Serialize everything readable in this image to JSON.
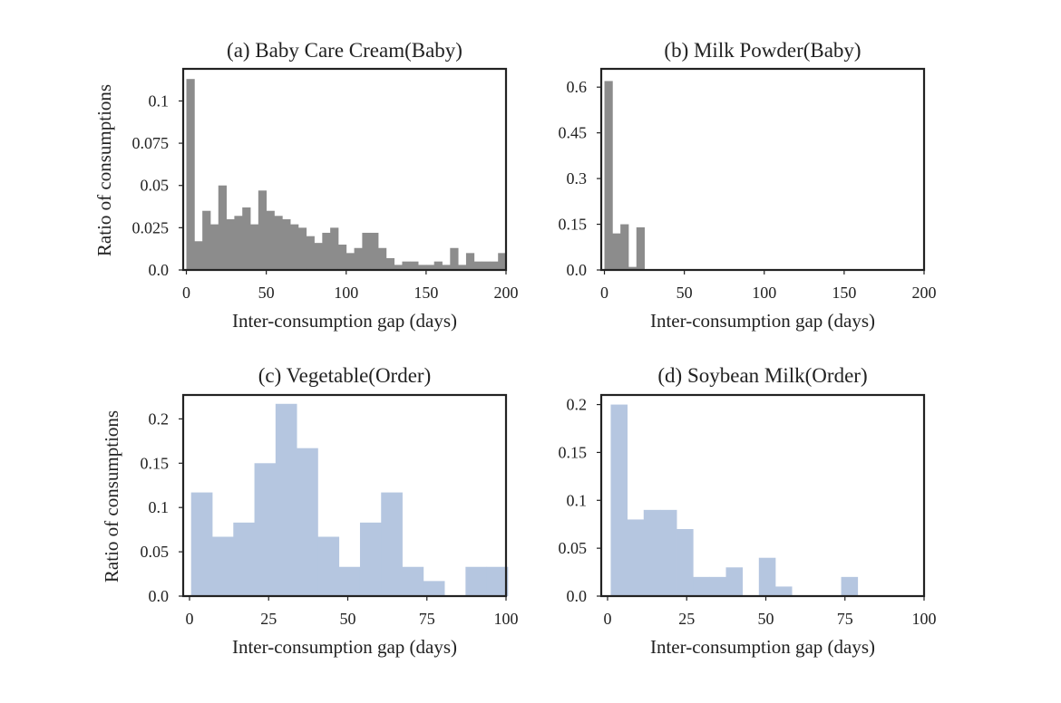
{
  "chart_data": [
    {
      "type": "bar",
      "title": "(a) Baby Care Cream(Baby)",
      "xlabel": "Inter-consumption gap (days)",
      "ylabel": "Ratio of consumptions",
      "xlim": [
        -2,
        200
      ],
      "ylim": [
        0,
        0.119
      ],
      "bin_width": 5,
      "bin_start": 0,
      "values": [
        0.113,
        0.017,
        0.035,
        0.027,
        0.05,
        0.03,
        0.032,
        0.037,
        0.027,
        0.047,
        0.035,
        0.032,
        0.03,
        0.027,
        0.025,
        0.02,
        0.016,
        0.022,
        0.025,
        0.015,
        0.01,
        0.013,
        0.022,
        0.022,
        0.013,
        0.007,
        0.003,
        0.005,
        0.005,
        0.003,
        0.003,
        0.005,
        0.003,
        0.013,
        0.003,
        0.01,
        0.005,
        0.005,
        0.005,
        0.01
      ],
      "xticks": [
        0,
        50,
        100,
        150,
        200
      ],
      "xtick_labels": [
        "0",
        "50",
        "100",
        "150",
        "200"
      ],
      "yticks": [
        0,
        0.025,
        0.05,
        0.075,
        0.1
      ],
      "ytick_labels": [
        "0.0",
        "0.025",
        "0.05",
        "0.075",
        "0.1"
      ],
      "color": "#8c8c8c"
    },
    {
      "type": "bar",
      "title": "(b) Milk Powder(Baby)",
      "xlabel": "Inter-consumption gap (days)",
      "ylabel": "",
      "xlim": [
        -2,
        200
      ],
      "ylim": [
        0,
        0.66
      ],
      "bin_width": 5,
      "bin_start": 0,
      "values": [
        0.62,
        0.12,
        0.15,
        0.01,
        0.14
      ],
      "xticks": [
        0,
        50,
        100,
        150,
        200
      ],
      "xtick_labels": [
        "0",
        "50",
        "100",
        "150",
        "200"
      ],
      "yticks": [
        0,
        0.15,
        0.3,
        0.45,
        0.6
      ],
      "ytick_labels": [
        "0.0",
        "0.15",
        "0.3",
        "0.45",
        "0.6"
      ],
      "color": "#8c8c8c"
    },
    {
      "type": "bar",
      "title": "(c) Vegetable(Order)",
      "xlabel": "Inter-consumption gap (days)",
      "ylabel": "Ratio of consumptions",
      "xlim": [
        -2,
        100
      ],
      "ylim": [
        0,
        0.227
      ],
      "bin_width": 6.67,
      "bin_start": 0.5,
      "values": [
        0.117,
        0.067,
        0.083,
        0.15,
        0.217,
        0.167,
        0.067,
        0.033,
        0.083,
        0.117,
        0.033,
        0.017,
        0,
        0.033,
        0.033
      ],
      "xticks": [
        0,
        25,
        50,
        75,
        100
      ],
      "xtick_labels": [
        "0",
        "25",
        "50",
        "75",
        "100"
      ],
      "yticks": [
        0,
        0.05,
        0.1,
        0.15,
        0.2
      ],
      "ytick_labels": [
        "0.0",
        "0.05",
        "0.1",
        "0.15",
        "0.2"
      ],
      "color": "#b5c6e0"
    },
    {
      "type": "bar",
      "title": "(d) Soybean Milk(Order)",
      "xlabel": "Inter-consumption gap (days)",
      "ylabel": "",
      "xlim": [
        -2,
        100
      ],
      "ylim": [
        0,
        0.21
      ],
      "bin_width": 5.2,
      "bin_start": 1,
      "values": [
        0.2,
        0.08,
        0.09,
        0.09,
        0.07,
        0.02,
        0.02,
        0.03,
        0,
        0.04,
        0.01,
        0,
        0,
        0,
        0.02
      ],
      "xticks": [
        0,
        25,
        50,
        75,
        100
      ],
      "xtick_labels": [
        "0",
        "25",
        "50",
        "75",
        "100"
      ],
      "yticks": [
        0,
        0.05,
        0.1,
        0.15,
        0.2
      ],
      "ytick_labels": [
        "0.0",
        "0.05",
        "0.1",
        "0.15",
        "0.2"
      ],
      "color": "#b5c6e0"
    }
  ]
}
